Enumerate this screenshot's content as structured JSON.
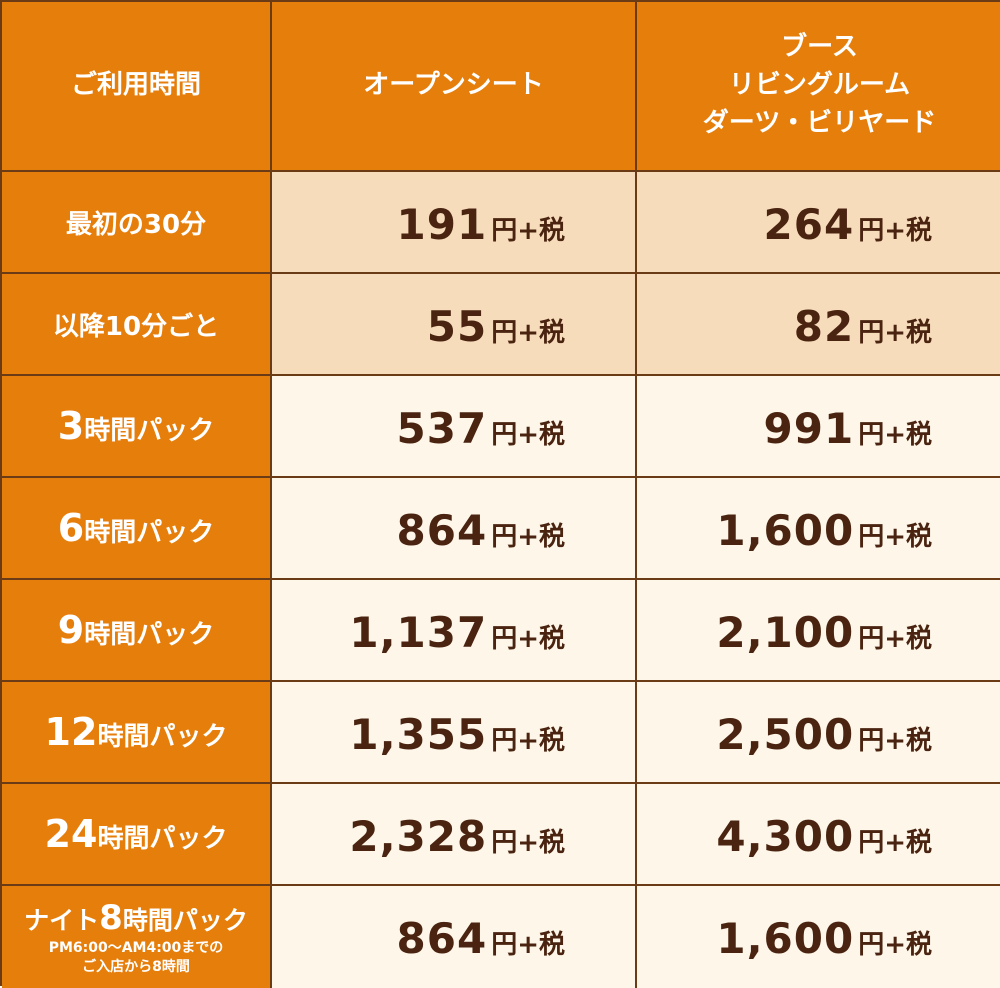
{
  "header": {
    "col_time": "ご利用時間",
    "col_open": "オープンシート",
    "col_booth": [
      "ブース",
      "リビングルーム",
      "ダーツ・ビリヤード"
    ]
  },
  "rows": [
    {
      "label": "最初の30分",
      "open": "191",
      "booth": "264",
      "unit": "円+税"
    },
    {
      "label": "以降10分ごと",
      "open": "55",
      "booth": "82",
      "unit": "円+税"
    },
    {
      "label_num": "3",
      "label_text": "時間パック",
      "open": "537",
      "booth": "991",
      "unit": "円+税"
    },
    {
      "label_num": "6",
      "label_text": "時間パック",
      "open": "864",
      "booth": "1,600",
      "unit": "円+税"
    },
    {
      "label_num": "9",
      "label_text": "時間パック",
      "open": "1,137",
      "booth": "2,100",
      "unit": "円+税"
    },
    {
      "label_num": "12",
      "label_text": "時間パック",
      "open": "1,355",
      "booth": "2,500",
      "unit": "円+税"
    },
    {
      "label_num": "24",
      "label_text": "時間パック",
      "open": "2,328",
      "booth": "4,300",
      "unit": "円+税"
    },
    {
      "label_pre": "ナイト",
      "label_num": "8",
      "label_text": "時間パック",
      "note_line1": "PM6:00～AM4:00までの",
      "note_line2": "ご入店から8時間",
      "open": "864",
      "booth": "1,600",
      "unit": "円+税"
    }
  ],
  "colors": {
    "header_orange": "#e67e0c",
    "border_brown": "#6a3b14",
    "price_text": "#4a2410",
    "peach_bg": "#f7dcbc",
    "cream_bg": "#fdf6e9"
  }
}
